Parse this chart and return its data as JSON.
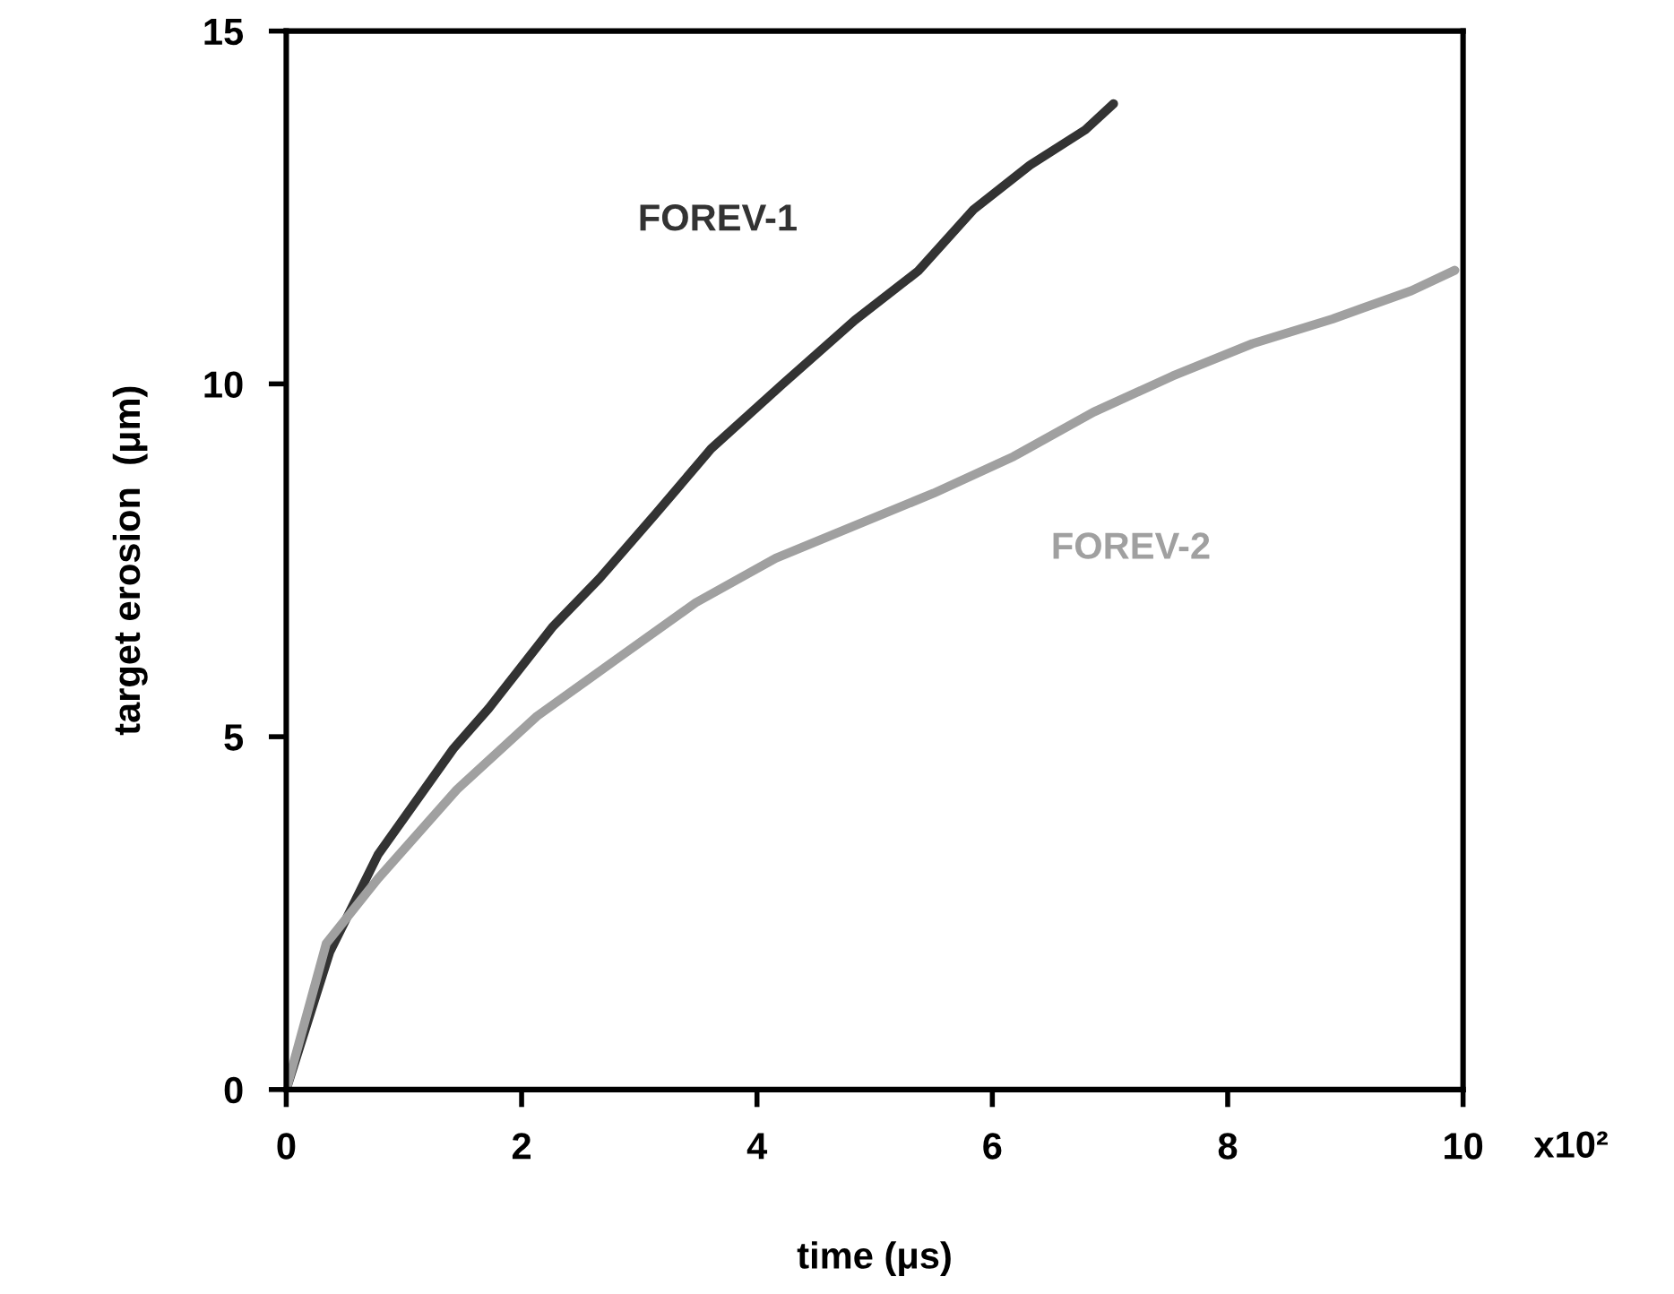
{
  "chart_data": {
    "type": "line",
    "xlabel": "time (μs)",
    "ylabel": "target erosion  (μm)",
    "xlim": [
      0,
      10
    ],
    "xticks": [
      0,
      2,
      4,
      6,
      8,
      10
    ],
    "ylim": [
      0,
      15
    ],
    "yticks": [
      0,
      5,
      10,
      15
    ],
    "grid": false,
    "marker": "none",
    "line_style": "solid",
    "series": [
      {
        "name": "FOREV-1",
        "color": "#333333",
        "x": [
          0,
          0.37,
          0.78,
          1.42,
          1.72,
          2.26,
          2.66,
          3.14,
          3.61,
          4.22,
          4.83,
          5.37,
          5.84,
          6.32,
          6.79,
          7.03
        ],
        "values": [
          0,
          1.95,
          3.33,
          4.83,
          5.4,
          6.55,
          7.24,
          8.16,
          9.08,
          10.0,
          10.9,
          11.6,
          12.47,
          13.1,
          13.6,
          13.97
        ]
      },
      {
        "name": "FOREV-2",
        "color": "#a0a0a0",
        "x": [
          0,
          0.34,
          0.78,
          1.45,
          2.13,
          2.8,
          3.48,
          4.16,
          4.83,
          5.5,
          6.18,
          6.86,
          7.53,
          8.21,
          8.89,
          9.56,
          9.93
        ],
        "values": [
          0,
          2.07,
          2.99,
          4.25,
          5.29,
          6.09,
          6.9,
          7.53,
          7.99,
          8.45,
          8.97,
          9.6,
          10.11,
          10.57,
          10.92,
          11.32,
          11.61
        ]
      }
    ],
    "annotations": [
      "x10²"
    ]
  }
}
